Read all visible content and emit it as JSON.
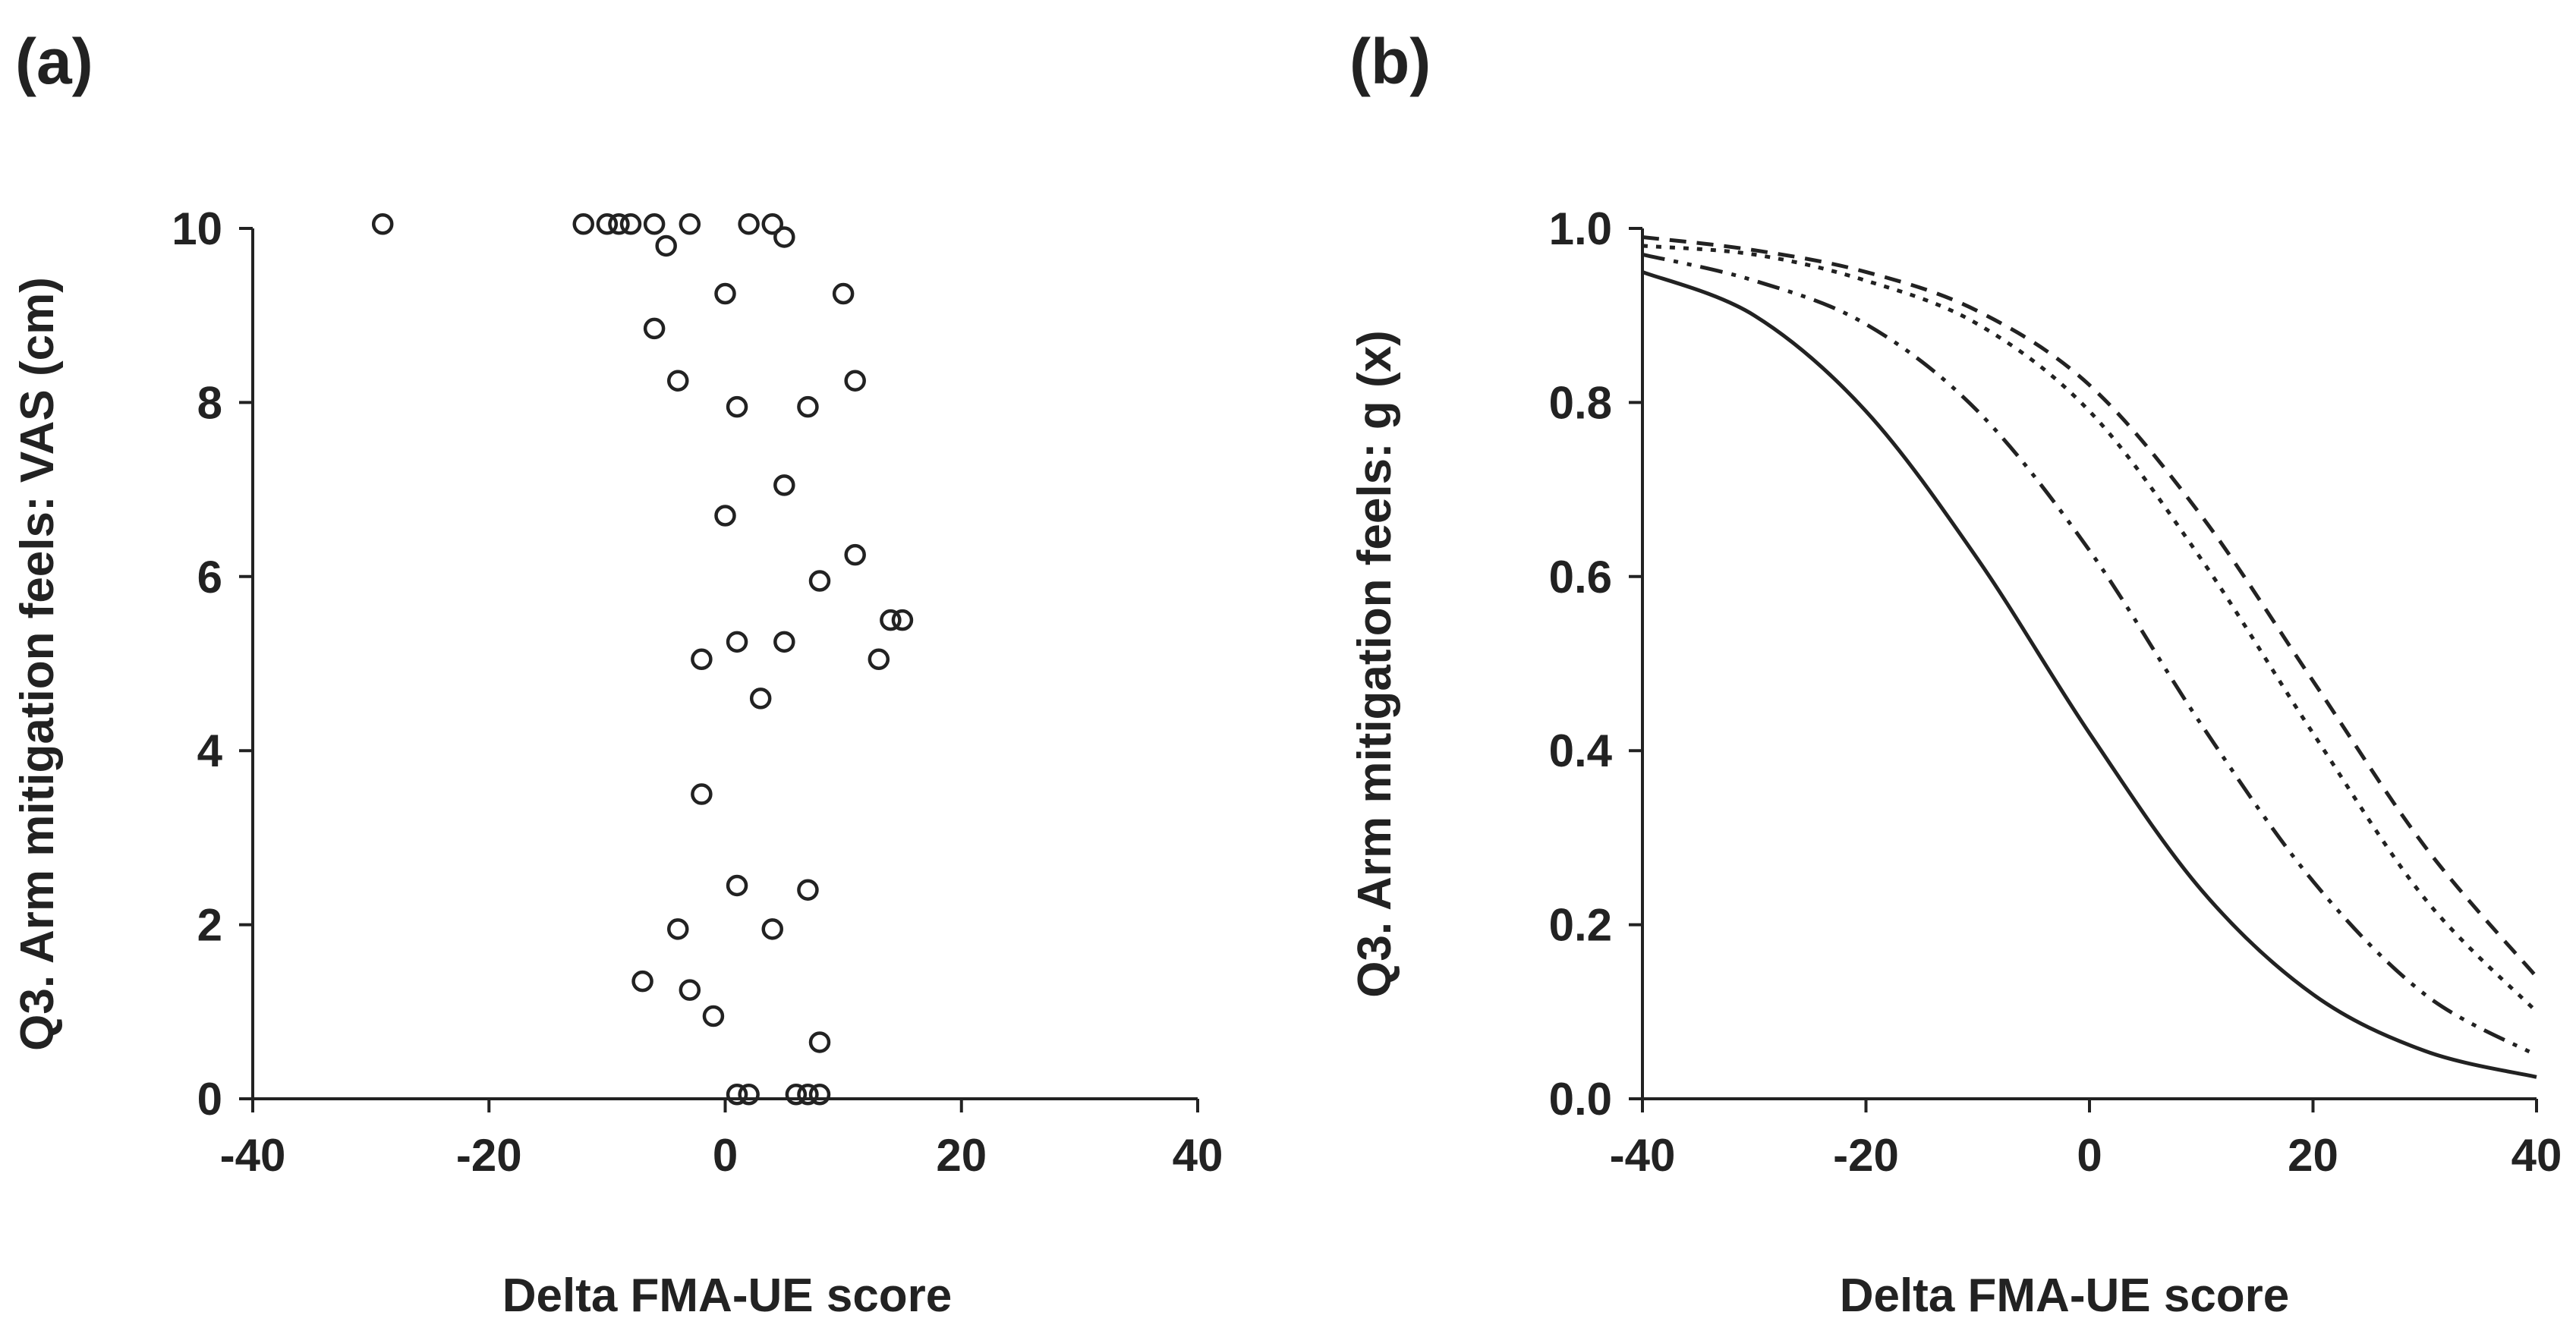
{
  "chart_data": [
    {
      "type": "scatter",
      "panel_label": "(a)",
      "xlabel": "Delta FMA-UE score",
      "ylabel": "Q3. Arm mitigation feels: VAS (cm)",
      "xlim": [
        -40,
        40
      ],
      "ylim": [
        0,
        10
      ],
      "xticks": [
        -40,
        -20,
        0,
        20,
        40
      ],
      "yticks": [
        0,
        2,
        4,
        6,
        8,
        10
      ],
      "xtick_labels": [
        "-40",
        "-20",
        "0",
        "20",
        "40"
      ],
      "ytick_labels": [
        "0",
        "2",
        "4",
        "6",
        "8",
        "10"
      ],
      "marker": "open-circle",
      "points": [
        {
          "x": -29,
          "y": 10.05
        },
        {
          "x": -12,
          "y": 10.05
        },
        {
          "x": -10,
          "y": 10.05
        },
        {
          "x": -9,
          "y": 10.05
        },
        {
          "x": -8,
          "y": 10.05
        },
        {
          "x": -6,
          "y": 10.05
        },
        {
          "x": -3,
          "y": 10.05
        },
        {
          "x": 2,
          "y": 10.05
        },
        {
          "x": 4,
          "y": 10.05
        },
        {
          "x": -5,
          "y": 9.8
        },
        {
          "x": 5,
          "y": 9.9
        },
        {
          "x": 0,
          "y": 9.25
        },
        {
          "x": 10,
          "y": 9.25
        },
        {
          "x": -6,
          "y": 8.85
        },
        {
          "x": -4,
          "y": 8.25
        },
        {
          "x": 11,
          "y": 8.25
        },
        {
          "x": 1,
          "y": 7.95
        },
        {
          "x": 7,
          "y": 7.95
        },
        {
          "x": 5,
          "y": 7.05
        },
        {
          "x": 0,
          "y": 6.7
        },
        {
          "x": 11,
          "y": 6.25
        },
        {
          "x": 8,
          "y": 5.95
        },
        {
          "x": 14,
          "y": 5.5
        },
        {
          "x": 15,
          "y": 5.5
        },
        {
          "x": 1,
          "y": 5.25
        },
        {
          "x": 5,
          "y": 5.25
        },
        {
          "x": -2,
          "y": 5.05
        },
        {
          "x": 13,
          "y": 5.05
        },
        {
          "x": 3,
          "y": 4.6
        },
        {
          "x": -2,
          "y": 3.5
        },
        {
          "x": 1,
          "y": 2.45
        },
        {
          "x": 7,
          "y": 2.4
        },
        {
          "x": -4,
          "y": 1.95
        },
        {
          "x": 4,
          "y": 1.95
        },
        {
          "x": -7,
          "y": 1.35
        },
        {
          "x": -3,
          "y": 1.25
        },
        {
          "x": -1,
          "y": 0.95
        },
        {
          "x": 8,
          "y": 0.65
        },
        {
          "x": 1,
          "y": 0.05
        },
        {
          "x": 2,
          "y": 0.05
        },
        {
          "x": 6,
          "y": 0.05
        },
        {
          "x": 7,
          "y": 0.05
        },
        {
          "x": 8,
          "y": 0.05
        }
      ]
    },
    {
      "type": "line",
      "panel_label": "(b)",
      "xlabel": "Delta FMA-UE score",
      "ylabel": "Q3. Arm mitigation feels: g (x)",
      "xlim": [
        -40,
        40
      ],
      "ylim": [
        0,
        1
      ],
      "xticks": [
        -40,
        -20,
        0,
        20,
        40
      ],
      "yticks": [
        0,
        0.2,
        0.4,
        0.6,
        0.8,
        1.0
      ],
      "xtick_labels": [
        "-40",
        "-20",
        "0",
        "20",
        "40"
      ],
      "ytick_labels": [
        "0.0",
        "0.2",
        "0.4",
        "0.6",
        "0.8",
        "1.0"
      ],
      "series": [
        {
          "name": "solid",
          "dash": "solid",
          "x": [
            -40,
            -30,
            -20,
            -10,
            0,
            10,
            20,
            30,
            40
          ],
          "y": [
            0.95,
            0.9,
            0.79,
            0.62,
            0.42,
            0.24,
            0.12,
            0.055,
            0.025
          ]
        },
        {
          "name": "dash-dot-dot",
          "dash": "dash-dot-dot",
          "x": [
            -40,
            -30,
            -20,
            -10,
            0,
            10,
            20,
            30,
            40
          ],
          "y": [
            0.97,
            0.94,
            0.89,
            0.79,
            0.63,
            0.43,
            0.25,
            0.12,
            0.05
          ]
        },
        {
          "name": "dotted",
          "dash": "dotted",
          "x": [
            -40,
            -30,
            -20,
            -10,
            0,
            10,
            20,
            30,
            40
          ],
          "y": [
            0.98,
            0.97,
            0.94,
            0.89,
            0.79,
            0.62,
            0.42,
            0.23,
            0.1
          ]
        },
        {
          "name": "dashed",
          "dash": "dashed",
          "x": [
            -40,
            -30,
            -20,
            -10,
            0,
            10,
            20,
            30,
            40
          ],
          "y": [
            0.99,
            0.975,
            0.95,
            0.905,
            0.82,
            0.67,
            0.48,
            0.29,
            0.14
          ]
        }
      ]
    }
  ]
}
